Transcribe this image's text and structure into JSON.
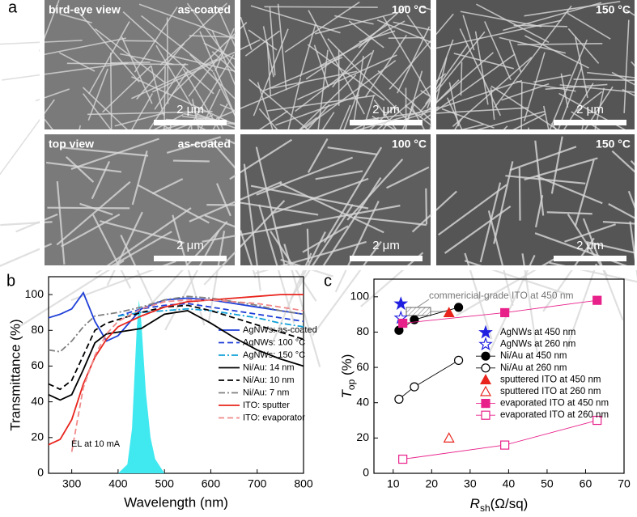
{
  "panel_a": {
    "label": "a",
    "rows": [
      {
        "view": "bird-eye view",
        "images": [
          {
            "condition": "as-coated",
            "scale": "2 μm"
          },
          {
            "condition": "100 °C",
            "scale": "2 μm"
          },
          {
            "condition": "150 °C",
            "scale": "2 μm"
          }
        ]
      },
      {
        "view": "top view",
        "images": [
          {
            "condition": "as-coated",
            "scale": "2 μm"
          },
          {
            "condition": "100 °C",
            "scale": "2 μm"
          },
          {
            "condition": "150 °C",
            "scale": "2 μm"
          }
        ]
      }
    ]
  },
  "chart_data": [
    {
      "type": "line",
      "label": "b",
      "xlabel": "Wavelength (nm)",
      "ylabel": "Transmittance (%)",
      "xlim": [
        250,
        800
      ],
      "xticks": [
        300,
        400,
        500,
        600,
        700,
        800
      ],
      "ylim": [
        0,
        110
      ],
      "yticks": [
        0,
        20,
        40,
        60,
        80,
        100
      ],
      "annotation": "EL at 10 mA",
      "x": [
        250,
        275,
        300,
        325,
        350,
        375,
        400,
        450,
        500,
        550,
        600,
        650,
        700,
        750,
        800
      ],
      "series": [
        {
          "name": "AgNWs: as-coated",
          "color": "#1f3fd8",
          "dash": "solid",
          "values": [
            87,
            89,
            92,
            101,
            85,
            74,
            77,
            92,
            97,
            98,
            97,
            95,
            93,
            91,
            89
          ]
        },
        {
          "name": "AgNWs: 100 °C",
          "color": "#1f3fd8",
          "dash": "dash",
          "values": [
            null,
            null,
            null,
            null,
            null,
            null,
            88,
            92,
            94,
            95,
            93,
            91,
            89,
            87,
            85
          ]
        },
        {
          "name": "AgNWs: 150 °C",
          "color": "#10a0d8",
          "dash": "dashdot",
          "values": [
            null,
            null,
            null,
            null,
            null,
            null,
            88,
            90,
            91,
            92,
            91,
            89,
            87,
            84,
            82
          ]
        },
        {
          "name": "Ni/Au: 14 nm",
          "color": "#000000",
          "dash": "solid",
          "values": [
            44,
            41,
            44,
            58,
            73,
            78,
            79,
            81,
            89,
            91,
            84,
            76,
            69,
            64,
            60
          ]
        },
        {
          "name": "Ni/Au: 10 nm",
          "color": "#000000",
          "dash": "dash",
          "values": [
            50,
            47,
            52,
            66,
            80,
            84,
            86,
            90,
            93,
            94,
            91,
            87,
            83,
            79,
            75
          ]
        },
        {
          "name": "Ni/Au:   7 nm",
          "color": "#808080",
          "dash": "dashdot",
          "values": [
            69,
            68,
            74,
            82,
            88,
            89,
            90,
            93,
            97,
            99,
            98,
            96,
            94,
            91,
            89
          ]
        },
        {
          "name": "ITO: sputter",
          "color": "#e8241c",
          "dash": "solid",
          "values": [
            16,
            19,
            30,
            50,
            65,
            75,
            82,
            88,
            93,
            96,
            97,
            98,
            99,
            100,
            100
          ]
        },
        {
          "name": "ITO: evaporator",
          "color": "#f08a8a",
          "dash": "dash",
          "values": [
            null,
            null,
            12,
            48,
            66,
            78,
            85,
            92,
            96,
            97,
            97,
            96,
            95,
            93,
            91
          ]
        }
      ],
      "el_spectrum": {
        "color": "#40e8f0",
        "x": [
          400,
          420,
          430,
          440,
          445,
          450,
          460,
          470,
          480,
          500
        ],
        "values": [
          0,
          5,
          25,
          80,
          97,
          85,
          45,
          20,
          8,
          0
        ]
      }
    },
    {
      "type": "scatter",
      "label": "c",
      "xlabel": {
        "main": "R",
        "sub": "sh",
        "rest": "(Ω/sq)"
      },
      "ylabel": {
        "main": "T",
        "sub": "op",
        "rest": " (%)"
      },
      "xlim": [
        5,
        70
      ],
      "xticks": [
        10,
        20,
        30,
        40,
        50,
        60,
        70
      ],
      "ylim": [
        0,
        110
      ],
      "yticks": [
        0,
        20,
        40,
        60,
        80,
        100
      ],
      "annotation": "commericial-grade ITO at 450 nm",
      "series": [
        {
          "name": "AgNWs at 450 nm",
          "color": "#2020e0",
          "marker": "star",
          "filled": true,
          "line": false,
          "x": [
            12
          ],
          "values": [
            96
          ]
        },
        {
          "name": "AgNWs at 260 nm",
          "color": "#2020e0",
          "marker": "star",
          "filled": false,
          "line": false,
          "x": [
            12
          ],
          "values": [
            88
          ]
        },
        {
          "name": "Ni/Au at 450 nm",
          "color": "#000000",
          "marker": "circle",
          "filled": true,
          "line": true,
          "x": [
            11.5,
            15.5,
            27
          ],
          "values": [
            81,
            87,
            94
          ]
        },
        {
          "name": "Ni/Au at 260 nm",
          "color": "#000000",
          "marker": "circle",
          "filled": false,
          "line": true,
          "x": [
            11.5,
            15.5,
            27
          ],
          "values": [
            42,
            49,
            64
          ]
        },
        {
          "name": "sputtered ITO at 450 nm",
          "color": "#e8241c",
          "marker": "triangle",
          "filled": true,
          "line": false,
          "x": [
            24.5
          ],
          "values": [
            91
          ]
        },
        {
          "name": "sputtered ITO at 260 nm",
          "color": "#e8241c",
          "marker": "triangle",
          "filled": false,
          "line": false,
          "x": [
            24.5
          ],
          "values": [
            20
          ]
        },
        {
          "name": "evaporated ITO at 450 nm",
          "color": "#e8208a",
          "marker": "square",
          "filled": true,
          "line": true,
          "x": [
            12.5,
            39,
            63
          ],
          "values": [
            85,
            91,
            98
          ]
        },
        {
          "name": "evaporated ITO at 260 nm",
          "color": "#e8208a",
          "marker": "square",
          "filled": false,
          "line": true,
          "x": [
            12.5,
            39,
            63
          ],
          "values": [
            8,
            16,
            30
          ]
        }
      ]
    }
  ]
}
